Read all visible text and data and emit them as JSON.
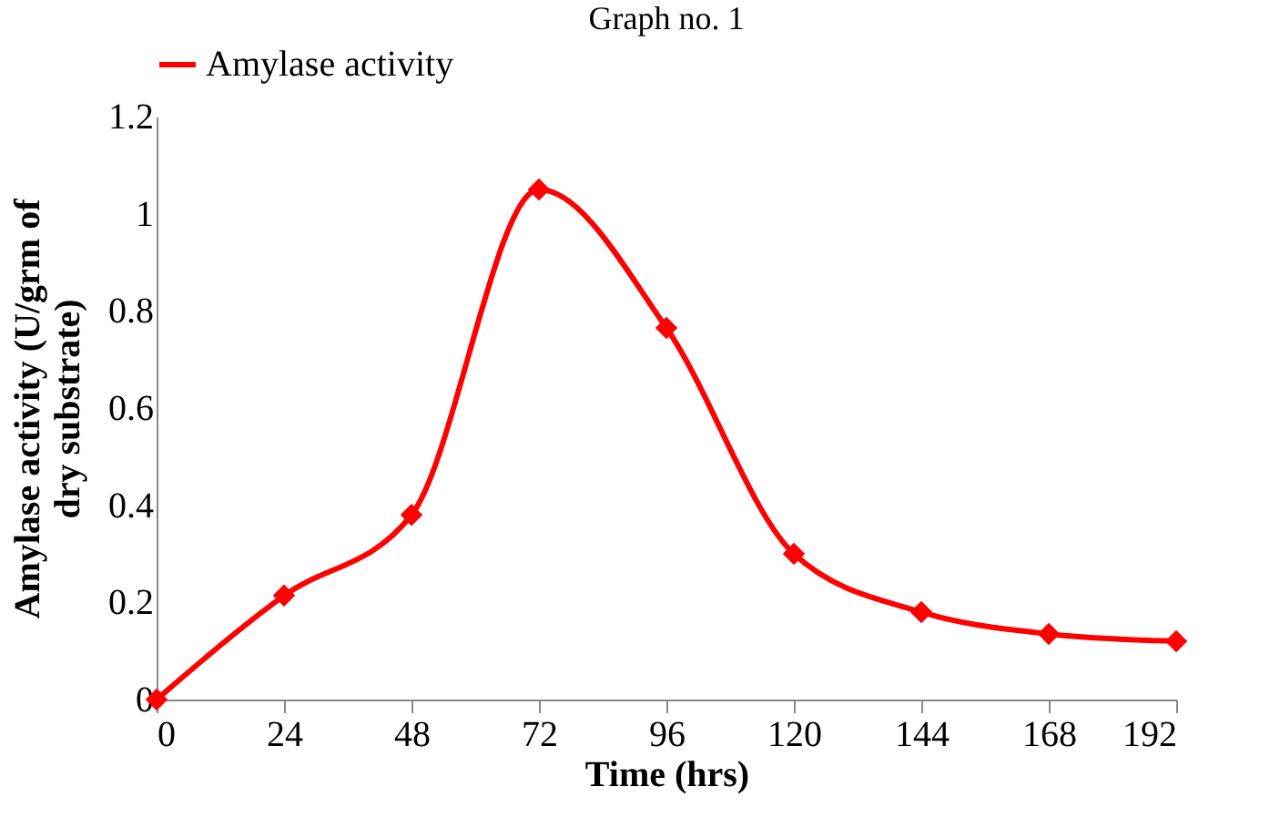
{
  "chart_data": {
    "type": "line",
    "title": "Graph no. 1",
    "xlabel": "Time (hrs)",
    "ylabel": "Amylase activity (U/grm of dry substrate)",
    "x": [
      0,
      24,
      48,
      72,
      96,
      120,
      144,
      168,
      192
    ],
    "series": [
      {
        "name": "Amylase activity",
        "color": "#ff0000",
        "values": [
          0,
          0.214,
          0.38,
          1.05,
          0.765,
          0.3,
          0.18,
          0.135,
          0.12
        ]
      }
    ],
    "xlim": [
      0,
      192
    ],
    "xticks": [
      0,
      24,
      48,
      72,
      96,
      120,
      144,
      168,
      192
    ],
    "ylim": [
      0,
      1.2
    ],
    "yticks": [
      0,
      0.2,
      0.4,
      0.6,
      0.8,
      1,
      1.2
    ],
    "grid": false,
    "legend": "top",
    "marker": "diamond",
    "line_style": "solid"
  }
}
